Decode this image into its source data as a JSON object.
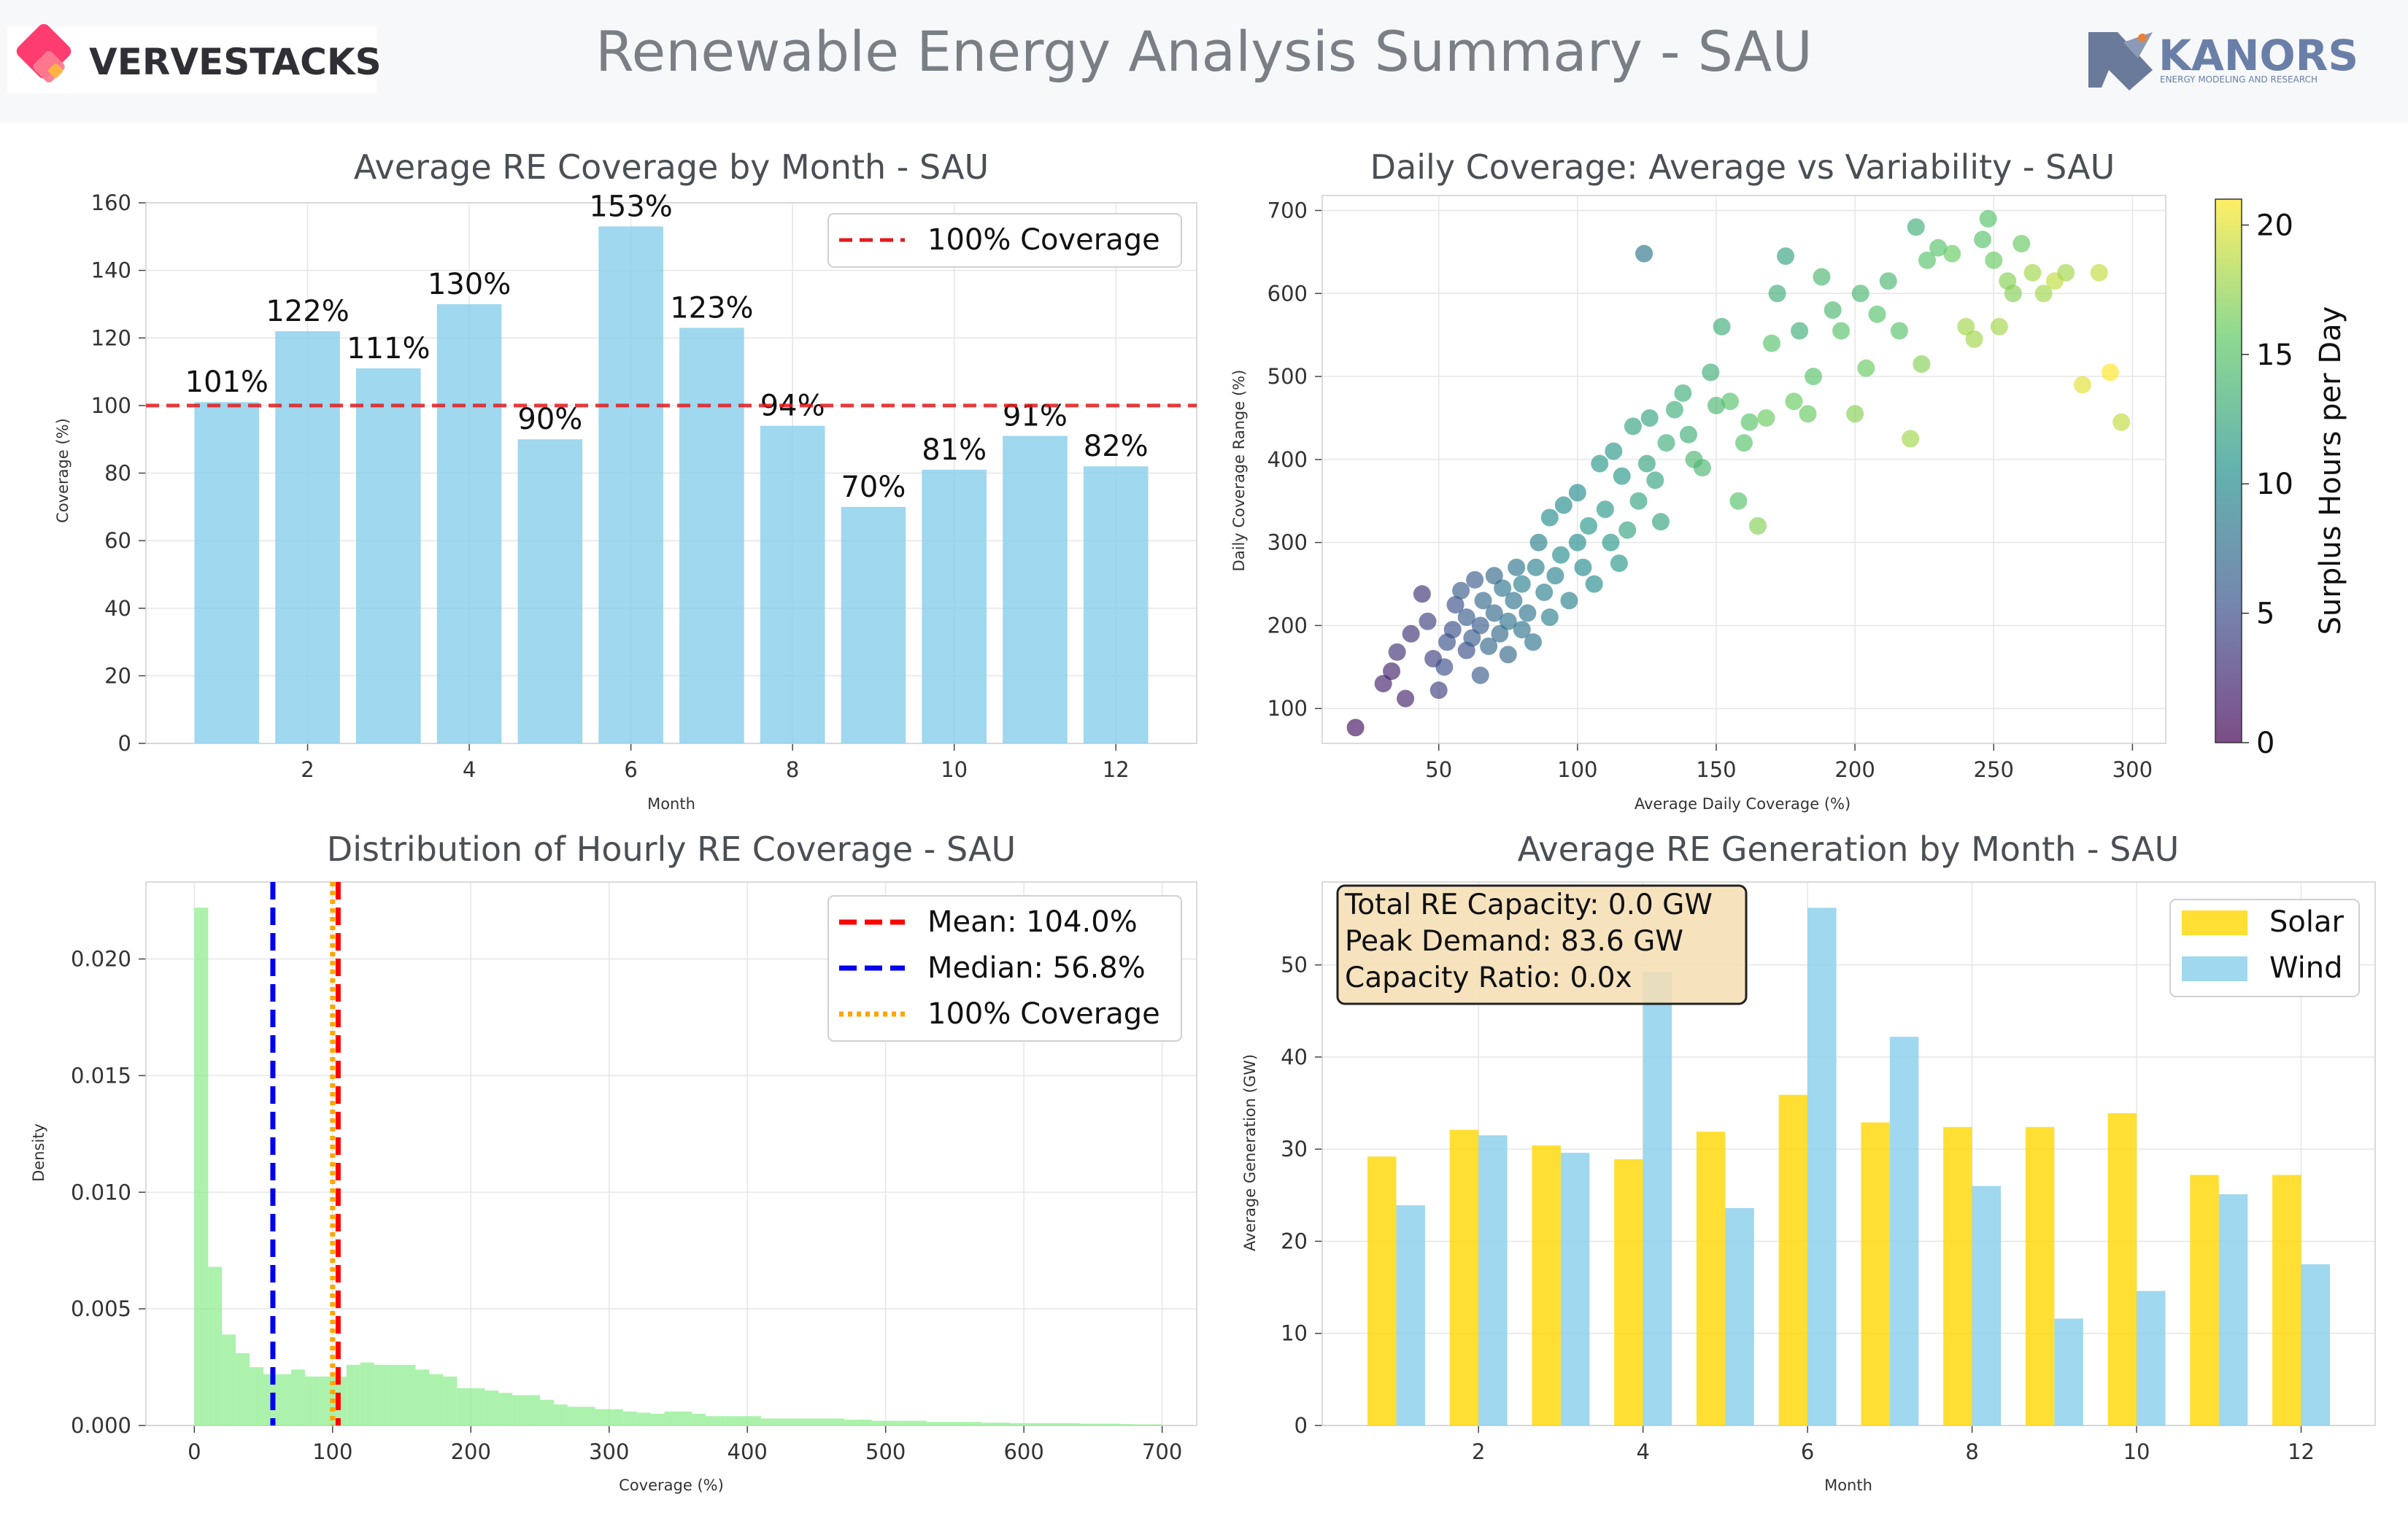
{
  "header": {
    "title": "Renewable Energy Analysis Summary - SAU",
    "left_logo_text": "VERVESTACKS",
    "right_logo_text": "KANORS",
    "right_logo_subtext": "ENERGY MODELING AND RESEARCH"
  },
  "colors": {
    "bar_blue": "#87ceeb",
    "hist_green": "#90ee90",
    "solar": "#ffd700",
    "reference_red": "#e41a1c",
    "median_blue": "#0000ee",
    "coverage_orange": "#ffa500",
    "text": "#4a4f55",
    "annotation_box": "#f5deb3"
  },
  "chart_data": [
    {
      "id": "coverage-by-month",
      "type": "bar",
      "title": "Average RE Coverage by Month - SAU",
      "xlabel": "Month",
      "ylabel": "Coverage (%)",
      "x": [
        1,
        2,
        3,
        4,
        5,
        6,
        7,
        8,
        9,
        10,
        11,
        12
      ],
      "values": [
        101,
        122,
        111,
        130,
        90,
        153,
        123,
        94,
        70,
        81,
        91,
        82
      ],
      "data_labels": [
        "101%",
        "122%",
        "111%",
        "130%",
        "90%",
        "153%",
        "123%",
        "94%",
        "70%",
        "81%",
        "91%",
        "82%"
      ],
      "xlim": [
        0,
        13
      ],
      "ylim": [
        0,
        160
      ],
      "xticks": [
        2,
        4,
        6,
        8,
        10,
        12
      ],
      "yticks": [
        0,
        20,
        40,
        60,
        80,
        100,
        120,
        140,
        160
      ],
      "reference_line": {
        "y": 100,
        "label": "100% Coverage"
      },
      "legend": "top-right",
      "grid": true
    },
    {
      "id": "coverage-variability",
      "type": "scatter",
      "title": "Daily Coverage: Average vs Variability - SAU",
      "xlabel": "Average Daily Coverage (%)",
      "ylabel": "Daily Coverage Range (%)",
      "colorbar_label": "Surplus Hours per Day",
      "colorbar_range": [
        0,
        21
      ],
      "colorbar_ticks": [
        0,
        5,
        10,
        15,
        20
      ],
      "xlim": [
        8,
        312
      ],
      "ylim": [
        58,
        718
      ],
      "xticks": [
        50,
        100,
        150,
        200,
        250,
        300
      ],
      "yticks": [
        100,
        200,
        300,
        400,
        500,
        600,
        700
      ],
      "colormap": "viridis",
      "grid": true,
      "points": [
        [
          20,
          77,
          1
        ],
        [
          30,
          130,
          2
        ],
        [
          33,
          145,
          2
        ],
        [
          35,
          168,
          3
        ],
        [
          38,
          112,
          2
        ],
        [
          40,
          190,
          3
        ],
        [
          44,
          238,
          3
        ],
        [
          46,
          205,
          4
        ],
        [
          48,
          160,
          4
        ],
        [
          50,
          122,
          4
        ],
        [
          52,
          150,
          5
        ],
        [
          53,
          180,
          5
        ],
        [
          55,
          195,
          5
        ],
        [
          56,
          225,
          5
        ],
        [
          58,
          242,
          6
        ],
        [
          60,
          170,
          5
        ],
        [
          60,
          210,
          6
        ],
        [
          62,
          185,
          6
        ],
        [
          63,
          255,
          6
        ],
        [
          65,
          140,
          6
        ],
        [
          65,
          200,
          6
        ],
        [
          66,
          230,
          7
        ],
        [
          68,
          175,
          7
        ],
        [
          70,
          215,
          7
        ],
        [
          70,
          260,
          7
        ],
        [
          72,
          190,
          7
        ],
        [
          73,
          245,
          8
        ],
        [
          75,
          165,
          7
        ],
        [
          75,
          205,
          8
        ],
        [
          77,
          230,
          8
        ],
        [
          78,
          270,
          8
        ],
        [
          80,
          195,
          8
        ],
        [
          80,
          250,
          9
        ],
        [
          82,
          215,
          8
        ],
        [
          84,
          180,
          8
        ],
        [
          85,
          270,
          9
        ],
        [
          86,
          300,
          9
        ],
        [
          88,
          240,
          9
        ],
        [
          90,
          210,
          9
        ],
        [
          90,
          330,
          10
        ],
        [
          92,
          260,
          9
        ],
        [
          94,
          285,
          10
        ],
        [
          95,
          345,
          10
        ],
        [
          97,
          230,
          9
        ],
        [
          100,
          300,
          10
        ],
        [
          100,
          360,
          10
        ],
        [
          102,
          270,
          10
        ],
        [
          104,
          320,
          11
        ],
        [
          106,
          250,
          10
        ],
        [
          108,
          395,
          11
        ],
        [
          110,
          340,
          11
        ],
        [
          112,
          300,
          11
        ],
        [
          113,
          410,
          11
        ],
        [
          115,
          275,
          11
        ],
        [
          116,
          380,
          11
        ],
        [
          118,
          315,
          12
        ],
        [
          120,
          440,
          12
        ],
        [
          122,
          350,
          12
        ],
        [
          124,
          648,
          8
        ],
        [
          125,
          395,
          12
        ],
        [
          126,
          450,
          12
        ],
        [
          128,
          375,
          12
        ],
        [
          130,
          325,
          12
        ],
        [
          132,
          420,
          13
        ],
        [
          135,
          460,
          13
        ],
        [
          138,
          480,
          13
        ],
        [
          140,
          430,
          13
        ],
        [
          142,
          400,
          14
        ],
        [
          145,
          390,
          14
        ],
        [
          148,
          505,
          13
        ],
        [
          150,
          465,
          14
        ],
        [
          152,
          560,
          13
        ],
        [
          155,
          470,
          15
        ],
        [
          158,
          350,
          15
        ],
        [
          160,
          420,
          15
        ],
        [
          162,
          445,
          15
        ],
        [
          165,
          320,
          17
        ],
        [
          168,
          450,
          16
        ],
        [
          170,
          540,
          15
        ],
        [
          172,
          600,
          13
        ],
        [
          175,
          645,
          12
        ],
        [
          178,
          470,
          16
        ],
        [
          180,
          555,
          13
        ],
        [
          183,
          455,
          16
        ],
        [
          185,
          500,
          15
        ],
        [
          188,
          620,
          14
        ],
        [
          192,
          580,
          14
        ],
        [
          195,
          555,
          15
        ],
        [
          200,
          455,
          17
        ],
        [
          202,
          600,
          14
        ],
        [
          204,
          510,
          16
        ],
        [
          208,
          575,
          15
        ],
        [
          212,
          615,
          14
        ],
        [
          216,
          555,
          15
        ],
        [
          220,
          425,
          18
        ],
        [
          222,
          680,
          13
        ],
        [
          224,
          515,
          17
        ],
        [
          226,
          640,
          15
        ],
        [
          230,
          655,
          15
        ],
        [
          235,
          648,
          16
        ],
        [
          240,
          560,
          18
        ],
        [
          243,
          545,
          18
        ],
        [
          246,
          665,
          15
        ],
        [
          248,
          690,
          15
        ],
        [
          250,
          640,
          16
        ],
        [
          252,
          560,
          18
        ],
        [
          255,
          615,
          17
        ],
        [
          257,
          600,
          17
        ],
        [
          260,
          660,
          16
        ],
        [
          264,
          625,
          18
        ],
        [
          268,
          600,
          18
        ],
        [
          272,
          615,
          19
        ],
        [
          276,
          625,
          18
        ],
        [
          282,
          490,
          20
        ],
        [
          288,
          625,
          19
        ],
        [
          292,
          505,
          21
        ],
        [
          296,
          445,
          19
        ]
      ]
    },
    {
      "id": "hourly-coverage-distribution",
      "type": "bar",
      "title": "Distribution of Hourly RE Coverage - SAU",
      "xlabel": "Coverage (%)",
      "ylabel": "Density",
      "bin_width": 10,
      "bin_starts": [
        0,
        10,
        20,
        30,
        40,
        50,
        60,
        70,
        80,
        90,
        100,
        110,
        120,
        130,
        140,
        150,
        160,
        170,
        180,
        190,
        200,
        210,
        220,
        230,
        240,
        250,
        260,
        270,
        280,
        290,
        300,
        310,
        320,
        330,
        340,
        350,
        360,
        370,
        380,
        390,
        400,
        410,
        420,
        430,
        440,
        450,
        460,
        470,
        480,
        490,
        500,
        510,
        520,
        530,
        540,
        550,
        560,
        570,
        580,
        590,
        600,
        610,
        620,
        630,
        640,
        650,
        660,
        670,
        680,
        690
      ],
      "values": [
        0.0222,
        0.0068,
        0.0039,
        0.0031,
        0.0025,
        0.0022,
        0.0022,
        0.0024,
        0.0021,
        0.0021,
        0.0021,
        0.0026,
        0.0027,
        0.0026,
        0.0026,
        0.0026,
        0.0024,
        0.0022,
        0.0021,
        0.0016,
        0.0016,
        0.0015,
        0.0014,
        0.0013,
        0.0013,
        0.0011,
        0.0009,
        0.0008,
        0.0008,
        0.0007,
        0.0007,
        0.0006,
        0.00055,
        0.0005,
        0.0006,
        0.0006,
        0.0005,
        0.0004,
        0.0004,
        0.0004,
        0.0004,
        0.0003,
        0.0003,
        0.0003,
        0.0003,
        0.0003,
        0.0003,
        0.00025,
        0.00025,
        0.0002,
        0.0002,
        0.0002,
        0.0002,
        0.00015,
        0.00015,
        0.00015,
        0.00015,
        0.00012,
        0.00012,
        0.0001,
        0.0001,
        0.0001,
        0.0001,
        0.0001,
        8e-05,
        8e-05,
        8e-05,
        6e-05,
        5e-05,
        5e-05
      ],
      "xlim": [
        -35,
        725
      ],
      "ylim": [
        0,
        0.0233
      ],
      "xticks": [
        0,
        100,
        200,
        300,
        400,
        500,
        600,
        700
      ],
      "yticks": [
        0.0,
        0.005,
        0.01,
        0.015,
        0.02
      ],
      "ytick_labels": [
        "0.000",
        "0.005",
        "0.010",
        "0.015",
        "0.020"
      ],
      "mean_line": {
        "x": 104.0,
        "label": "Mean: 104.0%"
      },
      "median_line": {
        "x": 56.8,
        "label": "Median: 56.8%"
      },
      "coverage_line": {
        "x": 100,
        "label": "100% Coverage"
      },
      "legend": "top-right",
      "grid": true
    },
    {
      "id": "generation-by-month",
      "type": "bar",
      "title": "Average RE Generation by Month - SAU",
      "xlabel": "Month",
      "ylabel": "Average Generation (GW)",
      "categories": [
        1,
        2,
        3,
        4,
        5,
        6,
        7,
        8,
        9,
        10,
        11,
        12
      ],
      "series": [
        {
          "name": "Solar",
          "values": [
            29.2,
            32.1,
            30.4,
            28.9,
            31.9,
            35.9,
            32.9,
            32.4,
            32.4,
            33.9,
            27.2,
            27.2
          ]
        },
        {
          "name": "Wind",
          "values": [
            23.9,
            31.5,
            29.6,
            49.2,
            23.6,
            56.2,
            42.2,
            26.0,
            11.6,
            14.6,
            25.1,
            17.5
          ]
        }
      ],
      "xlim": [
        0.1,
        12.9
      ],
      "ylim": [
        0,
        59
      ],
      "xticks": [
        2,
        4,
        6,
        8,
        10,
        12
      ],
      "yticks": [
        0,
        10,
        20,
        30,
        40,
        50
      ],
      "annotation": [
        "Total RE Capacity: 0.0 GW",
        "Peak Demand: 83.6 GW",
        "Capacity Ratio: 0.0x"
      ],
      "legend": "top-right",
      "grid": true
    }
  ]
}
